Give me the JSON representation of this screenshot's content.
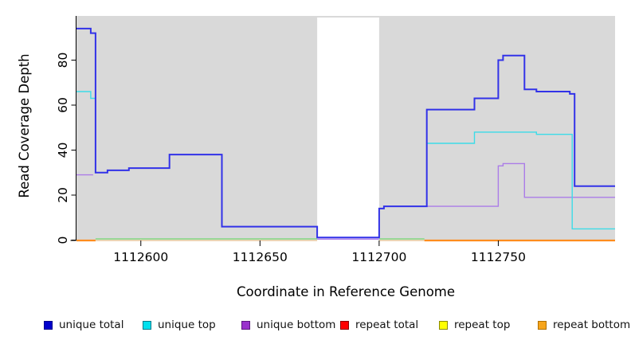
{
  "chart_data": {
    "type": "step-line",
    "title": "",
    "xlabel": "Coordinate in Reference Genome",
    "ylabel": "Read Coverage Depth",
    "x_range": [
      1112573,
      1112799
    ],
    "y_axis_range": [
      0,
      95
    ],
    "x_ticks": [
      1112600,
      1112650,
      1112700,
      1112750
    ],
    "x_tick_labels": [
      "1112600",
      "1112650",
      "1112700",
      "1112750"
    ],
    "y_ticks": [
      0,
      20,
      40,
      60,
      80
    ],
    "y_tick_labels": [
      "0",
      "20",
      "40",
      "60",
      "80"
    ],
    "grid": false,
    "legend_position": "bottom",
    "plot_background": "#d9d9d9",
    "no_data_region": {
      "x_start": 1112674,
      "x_end": 1112700,
      "fill": "#ffffff"
    },
    "series": [
      {
        "name": "repeat-total",
        "label": "repeat total",
        "color": "#e03030",
        "width": 1.4,
        "zero_offset": 0.5,
        "layer": "back",
        "in_legend": true,
        "steps": [
          [
            1112573,
            1112799,
            0
          ]
        ]
      },
      {
        "name": "repeat-top",
        "label": "repeat top",
        "color": "#ededc2",
        "width": 1.6,
        "zero_offset": 0.5,
        "layer": "back",
        "in_legend": true,
        "steps": [
          [
            1112573,
            1112799,
            0
          ]
        ]
      },
      {
        "name": "zero-coverage-overlap",
        "label": "",
        "color": "#8ed88e",
        "width": 1.8,
        "zero_offset": -1.5,
        "layer": "front",
        "in_legend": false,
        "steps": [
          [
            1112581,
            1112674,
            0
          ],
          [
            1112700,
            1112719,
            0
          ]
        ]
      },
      {
        "name": "unique-bottom",
        "label": "unique bottom",
        "color": "#ab7ce8",
        "width": 1.4,
        "zero_offset": -1.2,
        "layer": "front",
        "in_legend": true,
        "steps": [
          [
            1112573,
            1112580,
            29
          ],
          [
            1112674,
            1112700,
            0
          ],
          [
            1112720,
            1112750,
            15
          ],
          [
            1112750,
            1112752,
            33
          ],
          [
            1112752,
            1112761,
            34
          ],
          [
            1112761,
            1112799,
            19
          ]
        ]
      },
      {
        "name": "unique-top",
        "label": "unique top",
        "color": "#3cdce8",
        "width": 1.4,
        "zero_offset": 0,
        "layer": "front",
        "in_legend": true,
        "steps": [
          [
            1112573,
            1112579,
            66
          ],
          [
            1112579,
            1112581,
            63
          ],
          [
            1112720,
            1112740,
            43
          ],
          [
            1112740,
            1112766,
            48
          ],
          [
            1112766,
            1112781,
            47
          ],
          [
            1112781,
            1112799,
            5
          ]
        ]
      },
      {
        "name": "unique-total",
        "label": "unique total",
        "color": "#3232e8",
        "width": 2,
        "zero_offset": -3.2,
        "layer": "front",
        "in_legend": true,
        "steps": [
          [
            1112573,
            1112579,
            94
          ],
          [
            1112579,
            1112581,
            92
          ],
          [
            1112581,
            1112586,
            30
          ],
          [
            1112586,
            1112595,
            31
          ],
          [
            1112595,
            1112612,
            32
          ],
          [
            1112612,
            1112634,
            38
          ],
          [
            1112634,
            1112674,
            6
          ],
          [
            1112674,
            1112700,
            0
          ],
          [
            1112700,
            1112702,
            14
          ],
          [
            1112702,
            1112720,
            15
          ],
          [
            1112720,
            1112740,
            58
          ],
          [
            1112740,
            1112750,
            63
          ],
          [
            1112750,
            1112752,
            80
          ],
          [
            1112752,
            1112761,
            82
          ],
          [
            1112761,
            1112766,
            67
          ],
          [
            1112766,
            1112780,
            66
          ],
          [
            1112780,
            1112782,
            65
          ],
          [
            1112782,
            1112799,
            24
          ]
        ]
      },
      {
        "name": "repeat-bottom",
        "label": "repeat bottom",
        "color": "#ff8c1e",
        "width": 2.2,
        "zero_offset": 0.5,
        "layer": "front",
        "in_legend": true,
        "steps": [
          [
            1112573,
            1112581,
            0
          ],
          [
            1112719,
            1112799,
            0
          ]
        ]
      }
    ],
    "legend": [
      {
        "label": "unique total",
        "fill": "#0000cc",
        "border": "#00008b"
      },
      {
        "label": "unique top",
        "fill": "#00e0ee",
        "border": "#007a8a"
      },
      {
        "label": "unique bottom",
        "fill": "#9932cc",
        "border": "#5c1a80"
      },
      {
        "label": "repeat total",
        "fill": "#ff0000",
        "border": "#8b0000"
      },
      {
        "label": "repeat top",
        "fill": "#ffff00",
        "border": "#8a8a00"
      },
      {
        "label": "repeat bottom",
        "fill": "#f7a51b",
        "border": "#b06f00"
      }
    ],
    "axis_color": "#000000"
  }
}
